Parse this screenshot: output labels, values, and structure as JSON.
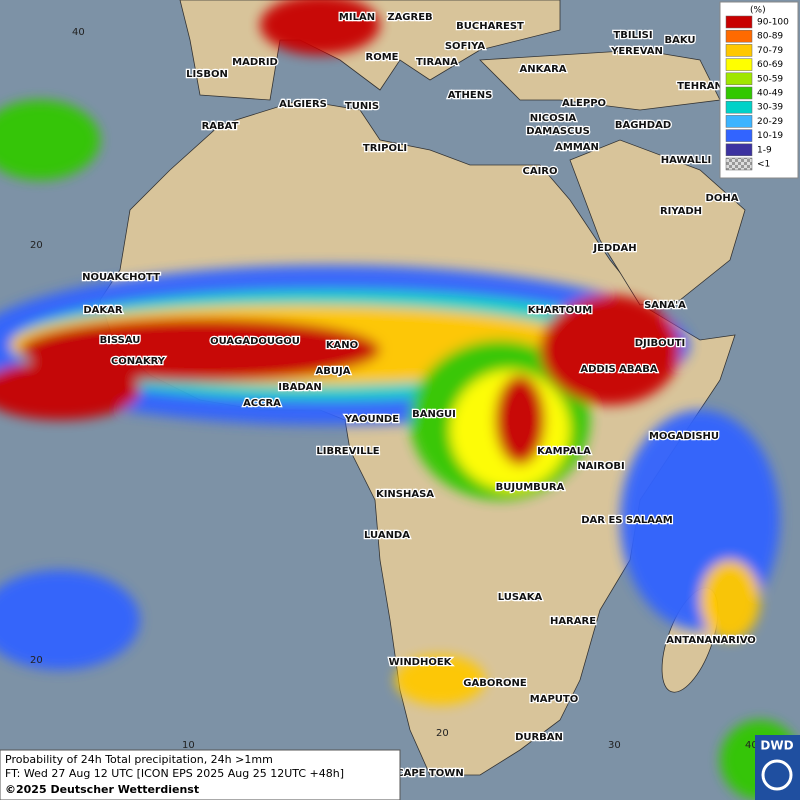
{
  "legend": {
    "unit": "(%)",
    "entries": [
      {
        "label": "90-100",
        "color": "#c80000"
      },
      {
        "label": "80-89",
        "color": "#ff6a00"
      },
      {
        "label": "70-79",
        "color": "#ffc800"
      },
      {
        "label": "60-69",
        "color": "#ffff00"
      },
      {
        "label": "50-59",
        "color": "#a0e600"
      },
      {
        "label": "40-49",
        "color": "#32c800"
      },
      {
        "label": "30-39",
        "color": "#00d2c8"
      },
      {
        "label": "20-29",
        "color": "#3cb4ff"
      },
      {
        "label": "10-19",
        "color": "#3264ff"
      },
      {
        "label": "1-9",
        "color": "#3c32a0"
      },
      {
        "label": "<1",
        "color": "#b4b4b4"
      }
    ]
  },
  "cities": [
    "MILAN",
    "ZAGREB",
    "BUCHAREST",
    "TBILISI",
    "BAKU",
    "MADRID",
    "ROME",
    "SOFIYA",
    "YEREVAN",
    "LISBON",
    "TIRANA",
    "ANKARA",
    "TEHRAN",
    "ALGIERS",
    "TUNIS",
    "ATHENS",
    "ALEPPO",
    "RABAT",
    "NICOSIA",
    "BAGHDAD",
    "DAMASCUS",
    "TRIPOLI",
    "AMMAN",
    "HAWALLI",
    "CAIRO",
    "DOHA",
    "RIYADH",
    "JEDDAH",
    "NOUAKCHOTT",
    "KHARTOUM",
    "DAKAR",
    "SANA'A",
    "BISSAU",
    "OUAGADOUGOU",
    "KANO",
    "DJIBOUTI",
    "CONAKRY",
    "ABUJA",
    "ADDIS ABABA",
    "IBADAN",
    "ACCRA",
    "YAOUNDE",
    "BANGUI",
    "MOGADISHU",
    "LIBREVILLE",
    "KAMPALA",
    "NAIROBI",
    "BUJUMBURA",
    "KINSHASA",
    "DAR ES SALAAM",
    "LUANDA",
    "LUSAKA",
    "HARARE",
    "ANTANANARIVO",
    "WINDHOEK",
    "GABORONE",
    "MAPUTO",
    "DURBAN",
    "CAPE TOWN"
  ],
  "grid_labels": [
    "40",
    "20",
    "20",
    "10",
    "20",
    "30",
    "40"
  ],
  "info": {
    "line1": "Probability of 24h Total precipitation, 24h >1mm",
    "line2": "FT: Wed 27 Aug 12 UTC [ICON EPS 2025 Aug 25 12UTC +48h]",
    "line3": "©2025 Deutscher Wetterdienst"
  },
  "logo": "DWD"
}
